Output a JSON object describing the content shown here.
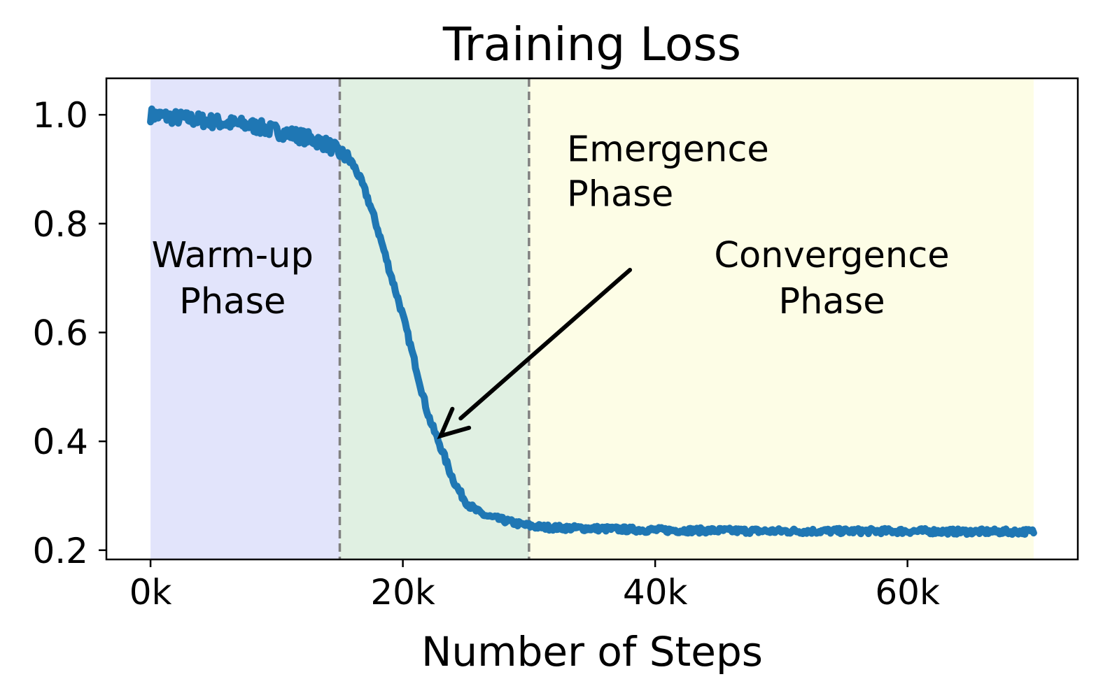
{
  "chart_data": {
    "type": "line",
    "title": "Training Loss",
    "xlabel": "Number of Steps",
    "ylabel": "",
    "xlim": [
      -3500,
      73500
    ],
    "ylim": [
      0.183,
      1.067
    ],
    "x_ticks": [
      0,
      20000,
      40000,
      60000
    ],
    "x_tick_labels": [
      "0k",
      "20k",
      "40k",
      "60k"
    ],
    "y_ticks": [
      0.2,
      0.4,
      0.6,
      0.8,
      1.0
    ],
    "y_tick_labels": [
      "0.2",
      "0.4",
      "0.6",
      "0.8",
      "1.0"
    ],
    "grid": false,
    "series": [
      {
        "name": "training loss",
        "color": "#1f77b4",
        "x": [
          0,
          2000,
          4000,
          6000,
          8000,
          10000,
          12000,
          14000,
          15000,
          16000,
          17000,
          18000,
          19000,
          20000,
          21000,
          22000,
          23000,
          24000,
          25000,
          26000,
          28000,
          30000,
          35000,
          40000,
          45000,
          50000,
          55000,
          60000,
          65000,
          70000
        ],
        "y": [
          1.0,
          0.995,
          0.99,
          0.985,
          0.98,
          0.97,
          0.96,
          0.945,
          0.93,
          0.91,
          0.86,
          0.79,
          0.71,
          0.63,
          0.54,
          0.45,
          0.39,
          0.33,
          0.29,
          0.27,
          0.255,
          0.245,
          0.24,
          0.237,
          0.236,
          0.235,
          0.235,
          0.235,
          0.234,
          0.234
        ]
      }
    ],
    "phases": [
      {
        "name": "warm-up",
        "label": [
          "Warm-up",
          "Phase"
        ],
        "x_start": 0,
        "x_end": 15000,
        "color": "#e2e4fb"
      },
      {
        "name": "emergence",
        "label": [
          "Emergence",
          "Phase"
        ],
        "x_start": 15000,
        "x_end": 30000,
        "color": "#e0f0e2"
      },
      {
        "name": "convergence",
        "label": [
          "Convergence",
          "Phase"
        ],
        "x_start": 30000,
        "x_end": 70000,
        "color": "#fdfde6"
      }
    ],
    "vlines": [
      15000,
      30000
    ],
    "vline_color": "#808080",
    "annotation": {
      "text": [
        "Emergence",
        "Phase"
      ],
      "text_anchor": [
        33000,
        0.915
      ],
      "arrow_from": [
        38000,
        0.715
      ],
      "arrow_to": [
        23000,
        0.41
      ]
    },
    "label_positions": {
      "warm-up": [
        6500,
        0.72
      ],
      "convergence": [
        54000,
        0.72
      ]
    }
  }
}
